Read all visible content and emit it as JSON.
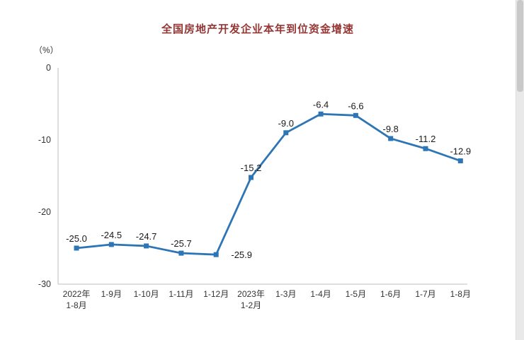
{
  "page": {
    "background": "#ffffff"
  },
  "chart_data": {
    "type": "line",
    "title": "全国房地产开发企业本年到位资金增速",
    "ylabel": "（%）",
    "xlabel": "",
    "categories": [
      [
        "2022年",
        "1-8月"
      ],
      [
        "1-9月"
      ],
      [
        "1-10月"
      ],
      [
        "1-11月"
      ],
      [
        "1-12月"
      ],
      [
        "2023年",
        "1-2月"
      ],
      [
        "1-3月"
      ],
      [
        "1-4月"
      ],
      [
        "1-5月"
      ],
      [
        "1-6月"
      ],
      [
        "1-7月"
      ],
      [
        "1-8月"
      ]
    ],
    "values": [
      -25.0,
      -24.5,
      -24.7,
      -25.7,
      -25.9,
      -15.2,
      -9.0,
      -6.4,
      -6.6,
      -9.8,
      -11.2,
      -12.9
    ],
    "value_labels": [
      "-25.0",
      "-24.5",
      "-24.7",
      "-25.7",
      "-25.9",
      "-15.2",
      "-9.0",
      "-6.4",
      "-6.6",
      "-9.8",
      "-11.2",
      "-12.9"
    ],
    "label_positions": [
      "top",
      "top",
      "top",
      "top",
      "right",
      "top",
      "top",
      "top",
      "top",
      "top",
      "top",
      "top"
    ],
    "yticks": [
      {
        "value": 0,
        "label": "0"
      },
      {
        "value": -10,
        "label": "-10"
      },
      {
        "value": -20,
        "label": "-20"
      },
      {
        "value": -30,
        "label": "-30"
      }
    ],
    "ylim": [
      -30,
      0
    ],
    "grid": false,
    "legend": "none",
    "marker": "square",
    "colors": {
      "line": "#2E75B6",
      "marker": "#2E75B6",
      "title": "#943634",
      "axis": "#bfbfbf",
      "value_text": "#1a1a1a",
      "tick_text": "#333333"
    }
  }
}
